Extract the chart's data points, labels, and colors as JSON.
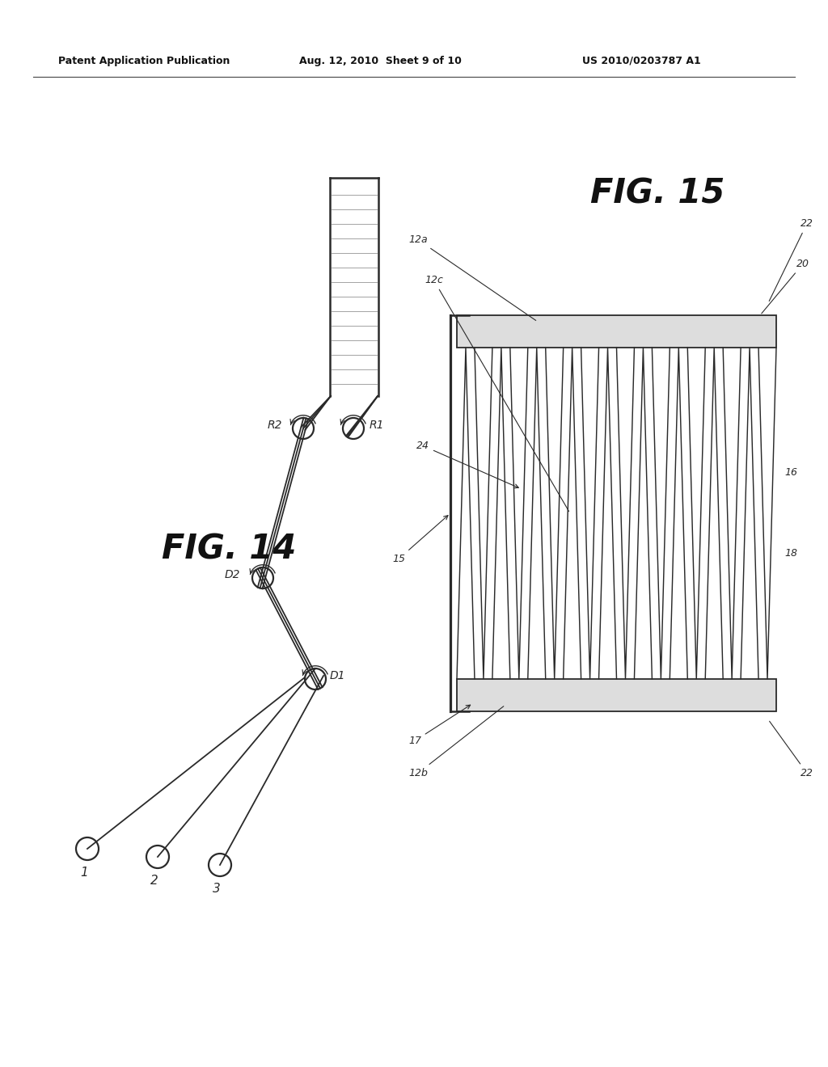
{
  "bg_color": "#ffffff",
  "header_text_left": "Patent Application Publication",
  "header_text_mid": "Aug. 12, 2010  Sheet 9 of 10",
  "header_text_right": "US 2010/0203787 A1",
  "fig14_label": "FIG. 14",
  "fig15_label": "FIG. 15",
  "line_color": "#2a2a2a",
  "label_color": "#1a1a1a"
}
